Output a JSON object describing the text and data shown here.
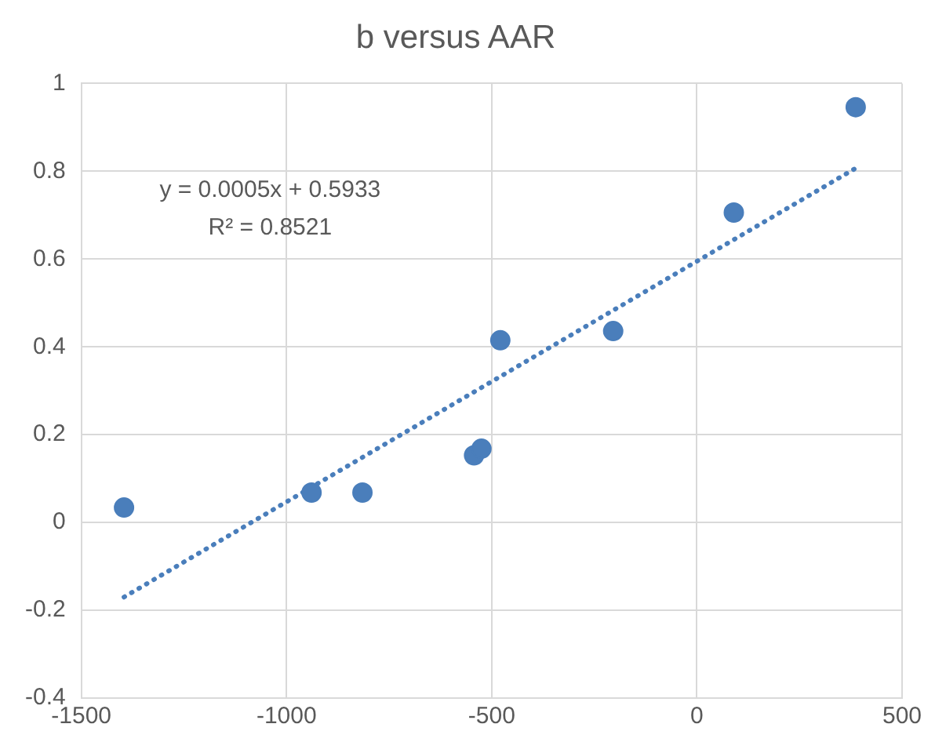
{
  "chart_data": {
    "type": "scatter",
    "title": "b versus AAR",
    "x": [
      -1396,
      -939,
      -815,
      -543,
      -525,
      -479,
      -204,
      90,
      387
    ],
    "series": [
      {
        "type": "scatter",
        "color": "#4a7ebb",
        "values": [
          0.034,
          0.068,
          0.068,
          0.153,
          0.168,
          0.415,
          0.436,
          0.706,
          0.946
        ],
        "marker": "circle"
      },
      {
        "type": "line",
        "color": "#4a7ebb",
        "x": [
          -1396,
          387
        ],
        "values": [
          -0.17,
          0.807
        ],
        "line_style": "dotted",
        "marker": "none"
      }
    ],
    "xlim": [
      -1500,
      500
    ],
    "xticks": [
      -1500,
      -1000,
      -500,
      0,
      500
    ],
    "ylim": [
      -0.4,
      1
    ],
    "yticks": [
      -0.4,
      -0.2,
      0,
      0.2,
      0.4,
      0.6,
      0.8,
      1
    ],
    "grid": true,
    "legend": false,
    "annotations": [
      "y = 0.0005x + 0.5933",
      "R² = 0.8521"
    ]
  }
}
